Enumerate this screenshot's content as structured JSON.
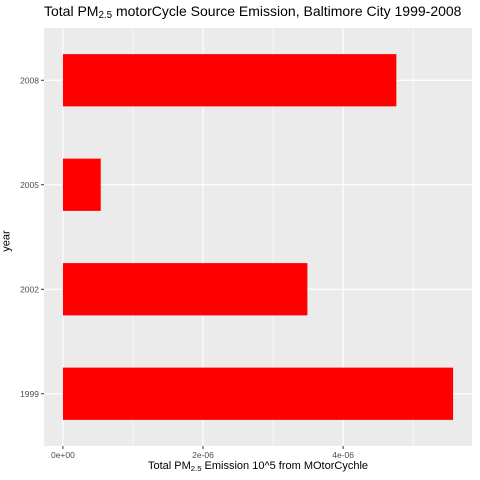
{
  "chart_data": {
    "type": "bar",
    "orientation": "horizontal",
    "title": {
      "prefix": "Total PM",
      "subscript": "2.5",
      "suffix": " motorCycle Source Emission, Baltimore City 1999-2008"
    },
    "xlabel": {
      "prefix": "Total PM",
      "subscript": "2.5",
      "suffix": " Emission 10^5 from MOtorCychle"
    },
    "ylabel": "year",
    "categories": [
      "1999",
      "2002",
      "2005",
      "2008"
    ],
    "values": [
      5.57e-06,
      3.49e-06,
      5.4e-07,
      4.76e-06
    ],
    "xlim": [
      -2.7e-07,
      5.84e-06
    ],
    "x_ticks": [
      {
        "value": 0,
        "label": "0e+00"
      },
      {
        "value": 2e-06,
        "label": "2e-06"
      },
      {
        "value": 4e-06,
        "label": "4e-06"
      }
    ],
    "bar_color": "#FF0000",
    "panel_background": "#EBEBEB",
    "grid_color": "#FFFFFF",
    "grid": true
  }
}
